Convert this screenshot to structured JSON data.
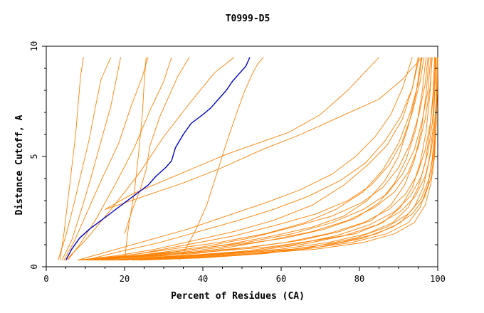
{
  "chart_data": {
    "type": "line",
    "title": "T0999-D5",
    "xlabel": "Percent of Residues (CA)",
    "ylabel": "Distance Cutoff, A",
    "xlim": [
      0,
      100
    ],
    "ylim": [
      0,
      10
    ],
    "x_ticks": [
      "0",
      "20",
      "40",
      "60",
      "80",
      "100"
    ],
    "y_ticks": [
      "0",
      "5",
      "10"
    ],
    "grid": false,
    "colors": {
      "highlight": "#0000cc",
      "others": "#ff8000"
    },
    "highlight_series": {
      "x": [
        5.0,
        6.5,
        8.5,
        11.0,
        14.0,
        17.0,
        20.0,
        23.0,
        26.0,
        28.0,
        30.5,
        32.0,
        33.0,
        35.0,
        37.0,
        40.0,
        42.0,
        44.0,
        46.0,
        47.5,
        49.5,
        51.0,
        52.0
      ],
      "y": [
        0.3,
        0.8,
        1.3,
        1.7,
        2.1,
        2.5,
        2.9,
        3.3,
        3.7,
        4.1,
        4.5,
        4.8,
        5.4,
        6.0,
        6.5,
        6.9,
        7.2,
        7.6,
        8.0,
        8.4,
        8.8,
        9.1,
        9.5
      ]
    },
    "other_series": [
      {
        "x": [
          3.5,
          4.5,
          5.5,
          6.5,
          7.5,
          8.2,
          8.8,
          9.5
        ],
        "y": [
          0.3,
          1.5,
          3.0,
          4.5,
          6.0,
          7.5,
          8.7,
          9.5
        ]
      },
      {
        "x": [
          3.0,
          5.0,
          7.0,
          9.0,
          11.0,
          12.5,
          14.0,
          16.5
        ],
        "y": [
          0.3,
          1.4,
          2.8,
          4.3,
          5.8,
          7.2,
          8.5,
          9.5
        ]
      },
      {
        "x": [
          4.0,
          6.5,
          9.0,
          11.5,
          14.0,
          16.5,
          18.0,
          19.0
        ],
        "y": [
          0.3,
          1.2,
          2.6,
          4.1,
          5.7,
          7.3,
          8.6,
          9.5
        ]
      },
      {
        "x": [
          4.5,
          7.0,
          10.0,
          14.0,
          18.5,
          21.5,
          24.5,
          26.0
        ],
        "y": [
          0.3,
          1.1,
          2.3,
          3.9,
          5.6,
          7.2,
          8.6,
          9.5
        ]
      },
      {
        "x": [
          5.5,
          8.5,
          12.5,
          17.5,
          22.5,
          26.5,
          30.0,
          32.0
        ],
        "y": [
          0.3,
          1.0,
          2.1,
          3.7,
          5.4,
          7.1,
          8.4,
          9.5
        ]
      },
      {
        "x": [
          20.0,
          22.0,
          24.0,
          25.5,
          26.5,
          29.0,
          31.5,
          33.5,
          35.5,
          36.5
        ],
        "y": [
          1.5,
          2.6,
          3.5,
          4.4,
          5.5,
          6.8,
          7.8,
          8.6,
          9.2,
          9.5
        ]
      },
      {
        "x": [
          20.0,
          21.0,
          22.5,
          23.5,
          24.5,
          25.0,
          25.5
        ],
        "y": [
          0.3,
          1.8,
          3.4,
          5.0,
          6.8,
          8.3,
          9.5
        ]
      },
      {
        "x": [
          5.0,
          10.0,
          17.0,
          24.0,
          30.0,
          37.0,
          43.0,
          48.0
        ],
        "y": [
          0.3,
          1.2,
          2.7,
          4.3,
          5.9,
          7.5,
          8.8,
          9.5
        ]
      },
      {
        "x": [
          34.0,
          38.0,
          41.0,
          43.5,
          46.0,
          48.5,
          50.5,
          52.5,
          54.0,
          55.5
        ],
        "y": [
          0.3,
          1.6,
          2.8,
          4.2,
          5.6,
          6.9,
          7.9,
          8.7,
          9.2,
          9.5
        ]
      },
      {
        "x": [
          15.0,
          22.0,
          30.0,
          38.0,
          46.0,
          54.0,
          62.0,
          70.0,
          77.0,
          85.0
        ],
        "y": [
          2.6,
          3.3,
          3.9,
          4.5,
          5.1,
          5.6,
          6.1,
          6.9,
          8.0,
          9.5
        ]
      },
      {
        "x": [
          15.0,
          25.0,
          35.0,
          45.0,
          55.0,
          65.0,
          75.0,
          85.0,
          91.0,
          96.0
        ],
        "y": [
          2.6,
          3.2,
          3.8,
          4.5,
          5.3,
          6.0,
          6.8,
          7.6,
          8.5,
          9.5
        ]
      },
      {
        "x": [
          8.0,
          18.0,
          28.0,
          38.0,
          48.0,
          58.0,
          68.0,
          76.0,
          82.0,
          87.0,
          91.0,
          93.5,
          95.0
        ],
        "y": [
          0.3,
          0.5,
          0.8,
          1.2,
          1.6,
          2.1,
          2.8,
          3.7,
          4.6,
          5.5,
          6.7,
          8.1,
          9.5
        ]
      },
      {
        "x": [
          9.0,
          20.0,
          32.0,
          44.0,
          56.0,
          66.0,
          74.0,
          81.0,
          86.0,
          90.0,
          93.0,
          95.0,
          96.0
        ],
        "y": [
          0.3,
          0.5,
          0.8,
          1.1,
          1.5,
          2.0,
          2.6,
          3.4,
          4.4,
          5.6,
          7.0,
          8.3,
          9.5
        ]
      },
      {
        "x": [
          10.0,
          22.0,
          34.0,
          46.0,
          58.0,
          68.0,
          76.0,
          82.0,
          86.5,
          90.0,
          92.5,
          94.5,
          95.8
        ],
        "y": [
          0.3,
          0.5,
          0.7,
          1.0,
          1.4,
          1.8,
          2.3,
          3.0,
          3.9,
          5.0,
          6.4,
          7.9,
          9.5
        ]
      },
      {
        "x": [
          11.0,
          24.0,
          37.0,
          49.0,
          61.0,
          71.0,
          79.0,
          85.0,
          89.0,
          92.0,
          94.5,
          96.0,
          97.0
        ],
        "y": [
          0.3,
          0.5,
          0.7,
          1.0,
          1.3,
          1.7,
          2.2,
          2.9,
          3.8,
          4.9,
          6.3,
          7.9,
          9.5
        ]
      },
      {
        "x": [
          12.0,
          26.0,
          40.0,
          53.0,
          65.0,
          75.0,
          83.0,
          88.0,
          91.5,
          94.0,
          95.8,
          97.0,
          97.8
        ],
        "y": [
          0.3,
          0.5,
          0.7,
          0.9,
          1.2,
          1.6,
          2.1,
          2.8,
          3.7,
          4.8,
          6.2,
          7.8,
          9.5
        ]
      },
      {
        "x": [
          13.0,
          28.0,
          43.0,
          57.0,
          69.0,
          79.0,
          86.0,
          90.5,
          93.5,
          95.5,
          97.0,
          98.0,
          98.5
        ],
        "y": [
          0.3,
          0.5,
          0.7,
          0.9,
          1.2,
          1.5,
          2.0,
          2.7,
          3.6,
          4.7,
          6.1,
          7.8,
          9.5
        ]
      },
      {
        "x": [
          14.0,
          30.0,
          46.0,
          60.0,
          72.0,
          82.0,
          88.5,
          92.5,
          95.0,
          96.8,
          98.0,
          98.8,
          99.2
        ],
        "y": [
          0.3,
          0.4,
          0.6,
          0.8,
          1.1,
          1.5,
          2.0,
          2.7,
          3.6,
          4.7,
          6.2,
          7.9,
          9.5
        ]
      },
      {
        "x": [
          15.0,
          32.0,
          48.0,
          63.0,
          75.0,
          84.5,
          90.5,
          94.0,
          96.3,
          97.8,
          98.8,
          99.3,
          99.6
        ],
        "y": [
          0.3,
          0.4,
          0.6,
          0.8,
          1.1,
          1.5,
          2.0,
          2.7,
          3.6,
          4.8,
          6.3,
          8.0,
          9.5
        ]
      },
      {
        "x": [
          16.0,
          34.0,
          51.0,
          66.0,
          78.0,
          87.0,
          92.5,
          95.5,
          97.5,
          98.6,
          99.3,
          99.7,
          99.9
        ],
        "y": [
          0.3,
          0.4,
          0.6,
          0.8,
          1.1,
          1.5,
          2.0,
          2.7,
          3.7,
          4.9,
          6.4,
          8.1,
          9.5
        ]
      },
      {
        "x": [
          17.0,
          36.0,
          54.0,
          69.0,
          81.0,
          89.0,
          94.0,
          96.8,
          98.3,
          99.2,
          99.6,
          99.8,
          100.0
        ],
        "y": [
          0.3,
          0.4,
          0.6,
          0.8,
          1.1,
          1.5,
          2.0,
          2.8,
          3.8,
          5.0,
          6.5,
          8.1,
          9.5
        ]
      },
      {
        "x": [
          12.0,
          24.0,
          36.0,
          48.0,
          59.0,
          69.0,
          77.0,
          83.0,
          87.5,
          91.0,
          93.5,
          95.5,
          96.5
        ],
        "y": [
          0.3,
          0.6,
          1.0,
          1.4,
          1.9,
          2.4,
          3.0,
          3.7,
          4.6,
          5.7,
          7.0,
          8.4,
          9.5
        ]
      },
      {
        "x": [
          14.0,
          27.0,
          40.0,
          52.0,
          63.0,
          73.0,
          80.5,
          86.0,
          90.0,
          93.0,
          95.2,
          96.8,
          97.5
        ],
        "y": [
          0.3,
          0.6,
          0.9,
          1.3,
          1.8,
          2.3,
          2.9,
          3.6,
          4.5,
          5.6,
          6.9,
          8.3,
          9.5
        ]
      },
      {
        "x": [
          16.0,
          30.0,
          44.0,
          57.0,
          68.0,
          77.0,
          84.0,
          89.0,
          92.5,
          95.0,
          96.8,
          98.0,
          98.6
        ],
        "y": [
          0.3,
          0.5,
          0.8,
          1.2,
          1.6,
          2.1,
          2.7,
          3.4,
          4.3,
          5.4,
          6.7,
          8.1,
          9.5
        ]
      },
      {
        "x": [
          18.0,
          33.0,
          48.0,
          61.0,
          72.0,
          81.0,
          87.5,
          91.8,
          94.8,
          96.8,
          98.2,
          99.0,
          99.4
        ],
        "y": [
          0.3,
          0.5,
          0.8,
          1.1,
          1.5,
          2.0,
          2.6,
          3.3,
          4.2,
          5.3,
          6.6,
          8.0,
          9.5
        ]
      },
      {
        "x": [
          20.0,
          36.0,
          52.0,
          65.0,
          76.0,
          84.5,
          90.5,
          94.3,
          96.8,
          98.3,
          99.2,
          99.7,
          99.9
        ],
        "y": [
          0.3,
          0.5,
          0.7,
          1.0,
          1.4,
          1.9,
          2.5,
          3.2,
          4.1,
          5.2,
          6.5,
          7.9,
          9.5
        ]
      },
      {
        "x": [
          8.0,
          16.0,
          26.0,
          36.0,
          46.0,
          56.0,
          65.0,
          73.0,
          79.0,
          84.0,
          88.0,
          91.0,
          93.5
        ],
        "y": [
          0.3,
          0.7,
          1.2,
          1.7,
          2.3,
          2.9,
          3.5,
          4.2,
          5.0,
          5.9,
          6.9,
          8.1,
          9.5
        ]
      },
      {
        "x": [
          10.0,
          19.0,
          29.0,
          39.0,
          49.0,
          58.0,
          67.0,
          75.0,
          81.5,
          86.5,
          90.5,
          93.5,
          95.3
        ],
        "y": [
          0.3,
          0.7,
          1.1,
          1.6,
          2.1,
          2.6,
          3.2,
          3.9,
          4.7,
          5.7,
          6.8,
          8.1,
          9.5
        ]
      },
      {
        "x": [
          22.0,
          38.0,
          54.0,
          68.0,
          79.0,
          87.0,
          92.5,
          95.8,
          97.8,
          98.9,
          99.5,
          99.8,
          100.0
        ],
        "y": [
          0.3,
          0.4,
          0.6,
          0.9,
          1.3,
          1.8,
          2.4,
          3.1,
          4.0,
          5.1,
          6.4,
          7.9,
          9.5
        ]
      },
      {
        "x": [
          13.0,
          25.0,
          38.0,
          51.0,
          63.0,
          73.0,
          81.0,
          87.0,
          91.0,
          94.0,
          96.0,
          97.5,
          98.2
        ],
        "y": [
          0.3,
          0.5,
          0.8,
          1.1,
          1.5,
          2.0,
          2.6,
          3.3,
          4.2,
          5.3,
          6.6,
          8.0,
          9.5
        ]
      },
      {
        "x": [
          24.0,
          40.0,
          56.0,
          70.0,
          81.0,
          88.5,
          93.5,
          96.5,
          98.2,
          99.1,
          99.6,
          99.9,
          100.0
        ],
        "y": [
          0.3,
          0.4,
          0.6,
          0.9,
          1.3,
          1.8,
          2.4,
          3.1,
          4.0,
          5.1,
          6.5,
          8.0,
          9.5
        ]
      },
      {
        "x": [
          19.0,
          35.0,
          50.0,
          63.0,
          74.0,
          82.5,
          89.0,
          93.0,
          95.8,
          97.5,
          98.6,
          99.2,
          99.5
        ],
        "y": [
          0.3,
          0.5,
          0.7,
          1.0,
          1.4,
          1.9,
          2.5,
          3.2,
          4.1,
          5.2,
          6.5,
          8.0,
          9.5
        ]
      }
    ]
  }
}
